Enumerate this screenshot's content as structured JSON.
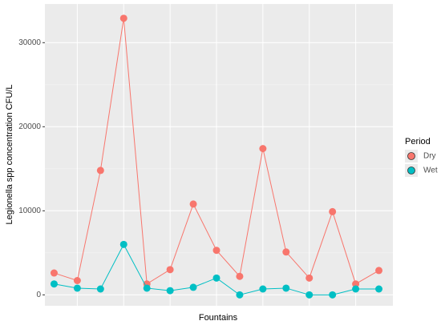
{
  "chart_data": {
    "type": "line",
    "x_label": "Fountains",
    "y_label": "Legionella spp concentration CFU/L",
    "categories": [
      null,
      null,
      null,
      null,
      null,
      null,
      null,
      null,
      null,
      null,
      null,
      null,
      null,
      null,
      null
    ],
    "series": [
      {
        "name": "Dry",
        "color": "#F8766D",
        "values": [
          2600,
          1700,
          14800,
          32900,
          1300,
          3000,
          10800,
          5300,
          2200,
          17400,
          5100,
          2000,
          9900,
          1300,
          2900
        ]
      },
      {
        "name": "Wet",
        "color": "#00BFC4",
        "values": [
          1300,
          800,
          700,
          6000,
          800,
          500,
          900,
          2000,
          0,
          700,
          800,
          0,
          0,
          700,
          700
        ]
      }
    ],
    "legend_title": "Period",
    "legend_position": "right",
    "ylim": [
      -1300,
      34600
    ],
    "yticks": [
      0,
      10000,
      20000,
      30000
    ],
    "grid": true
  }
}
